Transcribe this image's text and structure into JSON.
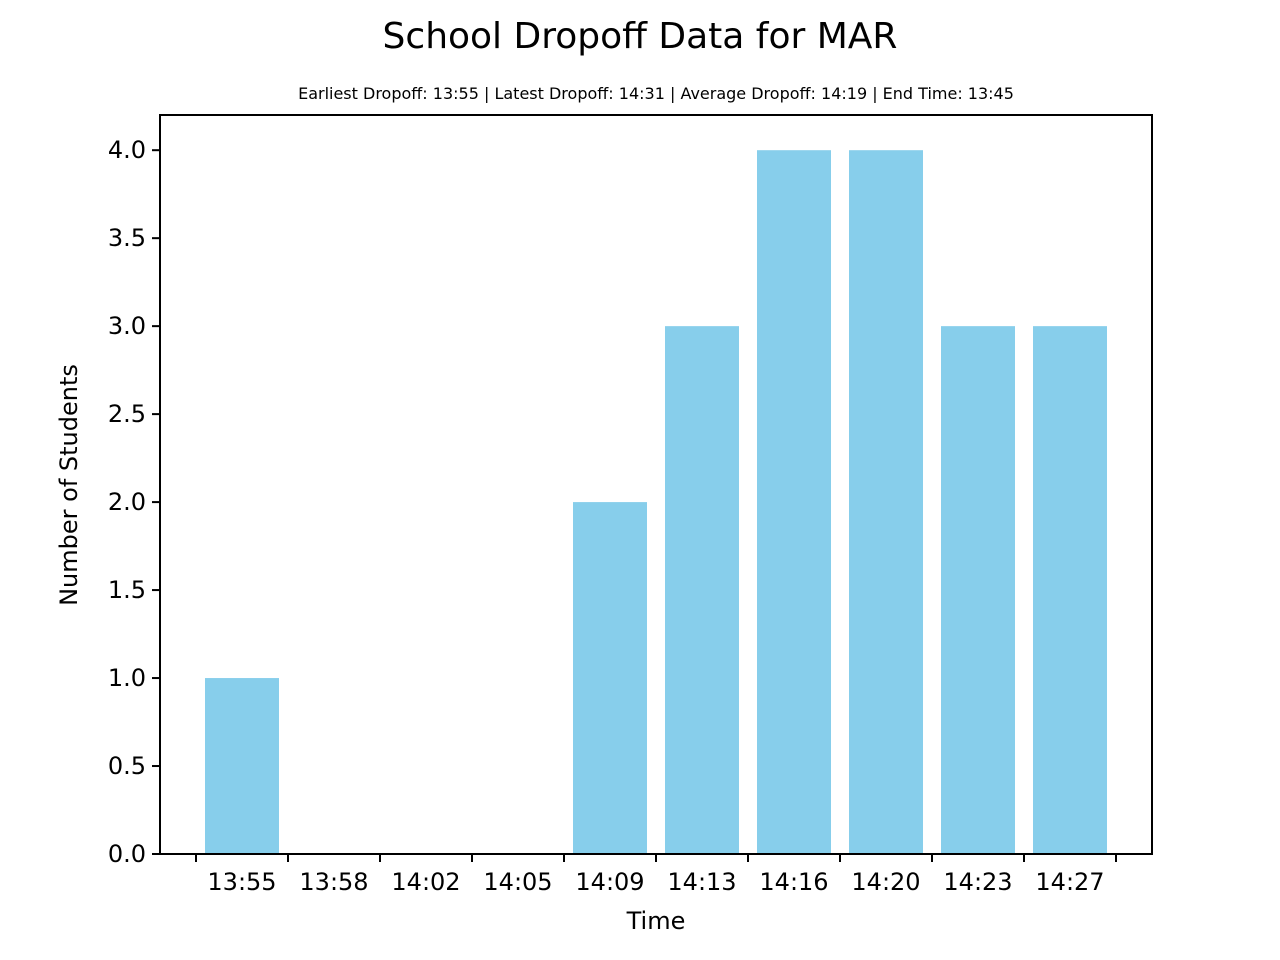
{
  "chart_data": {
    "type": "bar",
    "title": "School Dropoff Data for MAR",
    "subtitle": "Earliest Dropoff: 13:55 | Latest Dropoff: 14:31 | Average Dropoff: 14:19 | End Time: 13:45",
    "xlabel": "Time",
    "ylabel": "Number of Students",
    "categories": [
      "13:55",
      "13:58",
      "14:02",
      "14:05",
      "14:09",
      "14:13",
      "14:16",
      "14:20",
      "14:23",
      "14:27"
    ],
    "values": [
      1,
      0,
      0,
      0,
      2,
      3,
      4,
      4,
      3,
      3
    ],
    "ylim": [
      0,
      4.2
    ],
    "yticks": [
      "0.0",
      "0.5",
      "1.0",
      "1.5",
      "2.0",
      "2.5",
      "3.0",
      "3.5",
      "4.0"
    ],
    "bar_color": "#87ceeb",
    "grid": false,
    "legend": null
  }
}
